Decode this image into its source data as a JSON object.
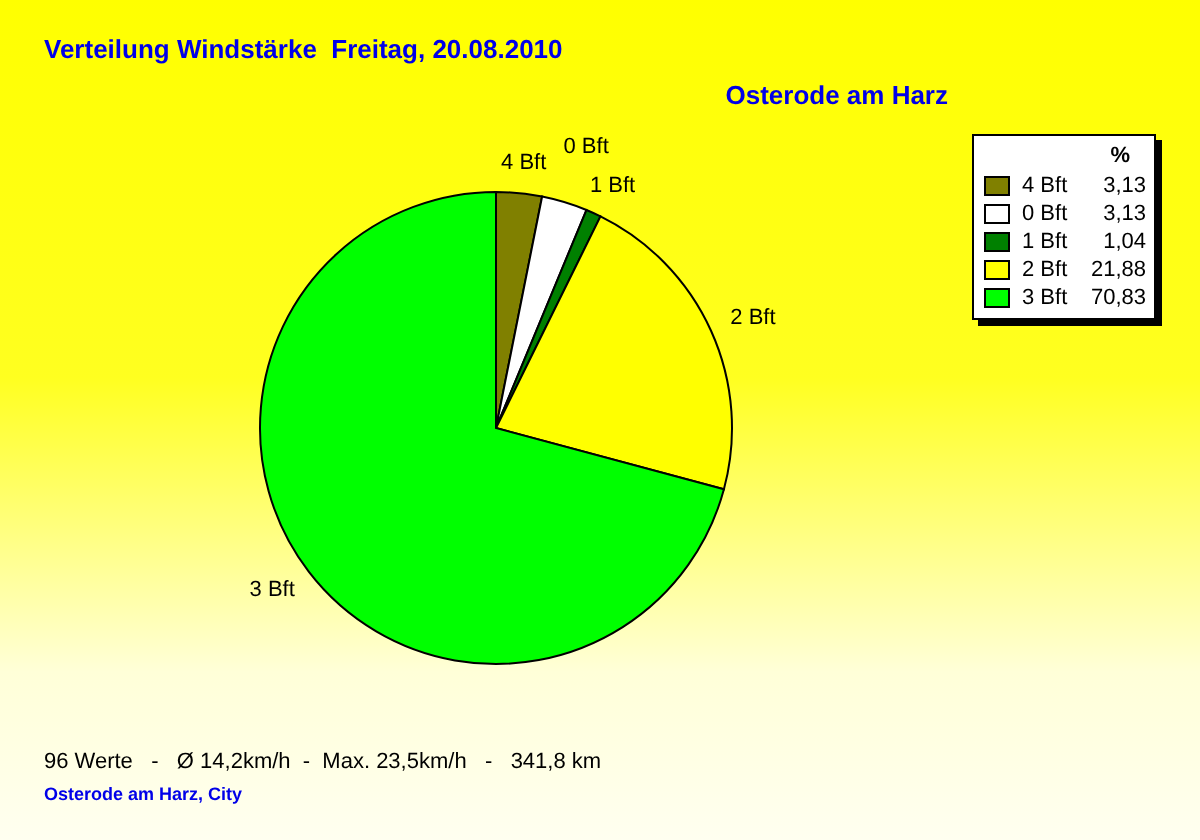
{
  "chart_data": {
    "type": "pie",
    "title": "Verteilung Windstärke  Freitag, 20.08.2010",
    "subtitle": "Osterode am Harz",
    "categories": [
      "4 Bft",
      "0 Bft",
      "1 Bft",
      "2 Bft",
      "3 Bft"
    ],
    "values": [
      3.13,
      3.13,
      1.04,
      21.88,
      70.83
    ],
    "value_labels": [
      "3,13",
      "3,13",
      "1,04",
      "21,88",
      "70,83"
    ],
    "colors": [
      "#808000",
      "#ffffff",
      "#008000",
      "#ffff00",
      "#00ff00"
    ],
    "legend_title": "%",
    "legend": "top right",
    "annotations": [
      "96 Werte   -   Ø 14,2km/h  -  Max. 23,5km/h   -   341,8 km",
      "Osterode am Harz, City"
    ]
  }
}
